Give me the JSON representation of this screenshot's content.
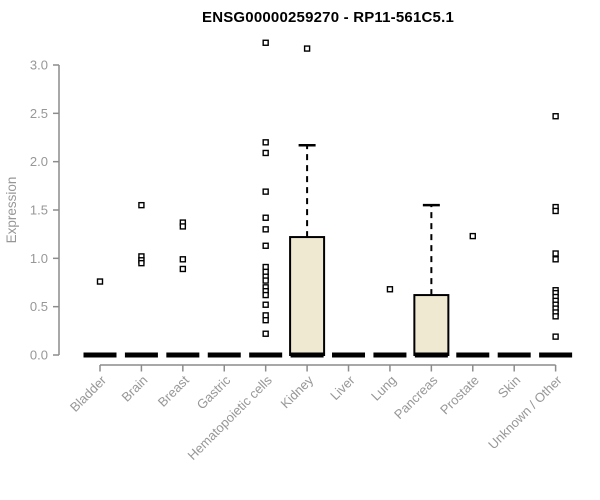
{
  "chart_data": {
    "type": "boxplot",
    "title": "ENSG00000259270 - RP11-561C5.1",
    "ylabel": "Expression",
    "xlabel": "",
    "ylim": [
      0,
      3.3
    ],
    "grid": false,
    "legend": "none",
    "ytick_labels": [
      "0.0",
      "0.5",
      "1.0",
      "1.5",
      "2.0",
      "2.5",
      "3.0"
    ],
    "categories": [
      "Bladder",
      "Brain",
      "Breast",
      "Gastric",
      "Hematopoietic cells",
      "Kidney",
      "Liver",
      "Lung",
      "Pancreas",
      "Prostate",
      "Skin",
      "Unknown / Other"
    ],
    "boxes": [
      {
        "category": "Bladder",
        "q1": 0,
        "median": 0,
        "q3": 0,
        "whisker_low": 0,
        "whisker_high": 0,
        "outliers": [
          0.76
        ]
      },
      {
        "category": "Brain",
        "q1": 0,
        "median": 0,
        "q3": 0,
        "whisker_low": 0,
        "whisker_high": 0,
        "outliers": [
          1.55,
          1.02,
          0.98,
          0.95
        ]
      },
      {
        "category": "Breast",
        "q1": 0,
        "median": 0,
        "q3": 0,
        "whisker_low": 0,
        "whisker_high": 0,
        "outliers": [
          1.37,
          1.33,
          0.99,
          0.89
        ]
      },
      {
        "category": "Gastric",
        "q1": 0,
        "median": 0,
        "q3": 0,
        "whisker_low": 0,
        "whisker_high": 0,
        "outliers": []
      },
      {
        "category": "Hematopoietic cells",
        "q1": 0,
        "median": 0,
        "q3": 0,
        "whisker_low": 0,
        "whisker_high": 0,
        "outliers": [
          3.23,
          2.2,
          2.09,
          1.69,
          1.42,
          1.3,
          1.13,
          0.91,
          0.86,
          0.81,
          0.77,
          0.7,
          0.66,
          0.62,
          0.52,
          0.41,
          0.36,
          0.22
        ]
      },
      {
        "category": "Kidney",
        "q1": 0,
        "median": 0,
        "q3": 1.22,
        "whisker_low": 0,
        "whisker_high": 2.17,
        "outliers": [
          3.17
        ]
      },
      {
        "category": "Liver",
        "q1": 0,
        "median": 0,
        "q3": 0,
        "whisker_low": 0,
        "whisker_high": 0,
        "outliers": []
      },
      {
        "category": "Lung",
        "q1": 0,
        "median": 0,
        "q3": 0,
        "whisker_low": 0,
        "whisker_high": 0,
        "outliers": [
          0.68
        ]
      },
      {
        "category": "Pancreas",
        "q1": 0,
        "median": 0,
        "q3": 0.62,
        "whisker_low": 0,
        "whisker_high": 1.55,
        "outliers": []
      },
      {
        "category": "Prostate",
        "q1": 0,
        "median": 0,
        "q3": 0,
        "whisker_low": 0,
        "whisker_high": 0,
        "outliers": [
          1.23
        ]
      },
      {
        "category": "Skin",
        "q1": 0,
        "median": 0,
        "q3": 0,
        "whisker_low": 0,
        "whisker_high": 0,
        "outliers": []
      },
      {
        "category": "Unknown / Other",
        "q1": 0,
        "median": 0,
        "q3": 0,
        "whisker_low": 0,
        "whisker_high": 0,
        "outliers": [
          2.47,
          1.53,
          1.49,
          1.05,
          0.99,
          0.67,
          0.64,
          0.6,
          0.56,
          0.52,
          0.48,
          0.44,
          0.4,
          0.19
        ]
      }
    ],
    "colors": {
      "background": "#ffffff",
      "box_fill": "#f0e9d2",
      "box_stroke": "#000000",
      "median": "#000000",
      "whisker": "#000000",
      "outlier_stroke": "#000000",
      "axis": "#8c8c8c",
      "tick_label": "#979797",
      "title": "#000000"
    }
  }
}
